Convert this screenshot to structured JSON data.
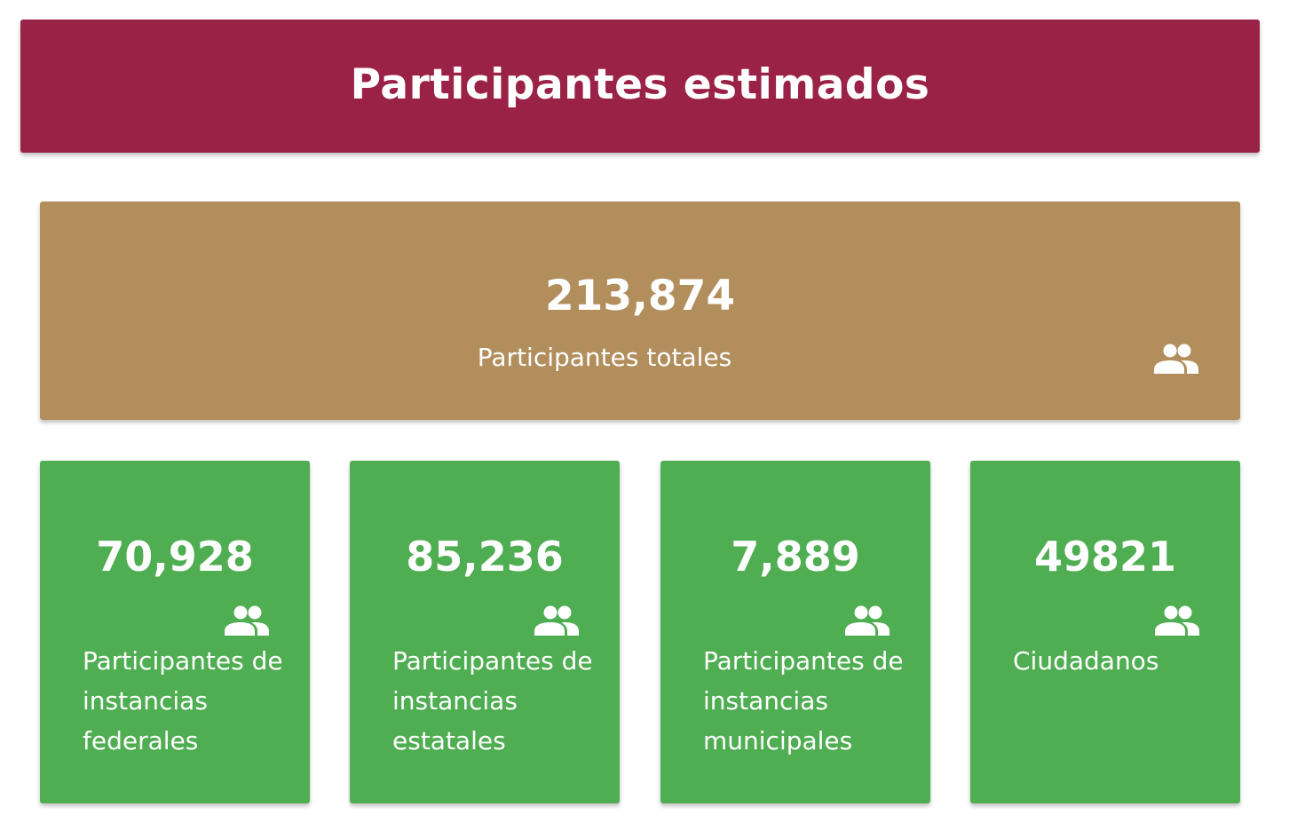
{
  "header": {
    "title": "Participantes estimados",
    "background": "#9b2247"
  },
  "total": {
    "value": "213,874",
    "label": "Participantes totales",
    "icon": "group-icon",
    "background": "#b28e5c"
  },
  "cards": [
    {
      "value": "70,928",
      "label": "Participantes de instancias federales",
      "icon": "group-icon"
    },
    {
      "value": "85,236",
      "label": "Participantes de instancias estatales",
      "icon": "group-icon"
    },
    {
      "value": "7,889",
      "label": "Participantes de instancias municipales",
      "icon": "group-icon"
    },
    {
      "value": "49821",
      "label": "Ciudadanos",
      "icon": "group-icon"
    }
  ],
  "card_background": "#4fad52"
}
